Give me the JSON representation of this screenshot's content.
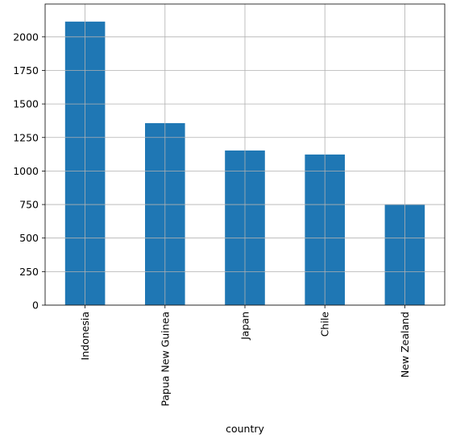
{
  "chart_data": {
    "type": "bar",
    "x_label": "country",
    "categories": [
      "Indonesia",
      "Papua New Guinea",
      "Japan",
      "Chile",
      "New Zealand"
    ],
    "values": [
      2114,
      1357,
      1153,
      1123,
      751
    ],
    "color": "#1f77b4",
    "ylim": [
      0,
      2245
    ],
    "yticks": [
      0,
      250,
      500,
      750,
      1000,
      1250,
      1500,
      1750,
      2000
    ],
    "grid": true
  }
}
